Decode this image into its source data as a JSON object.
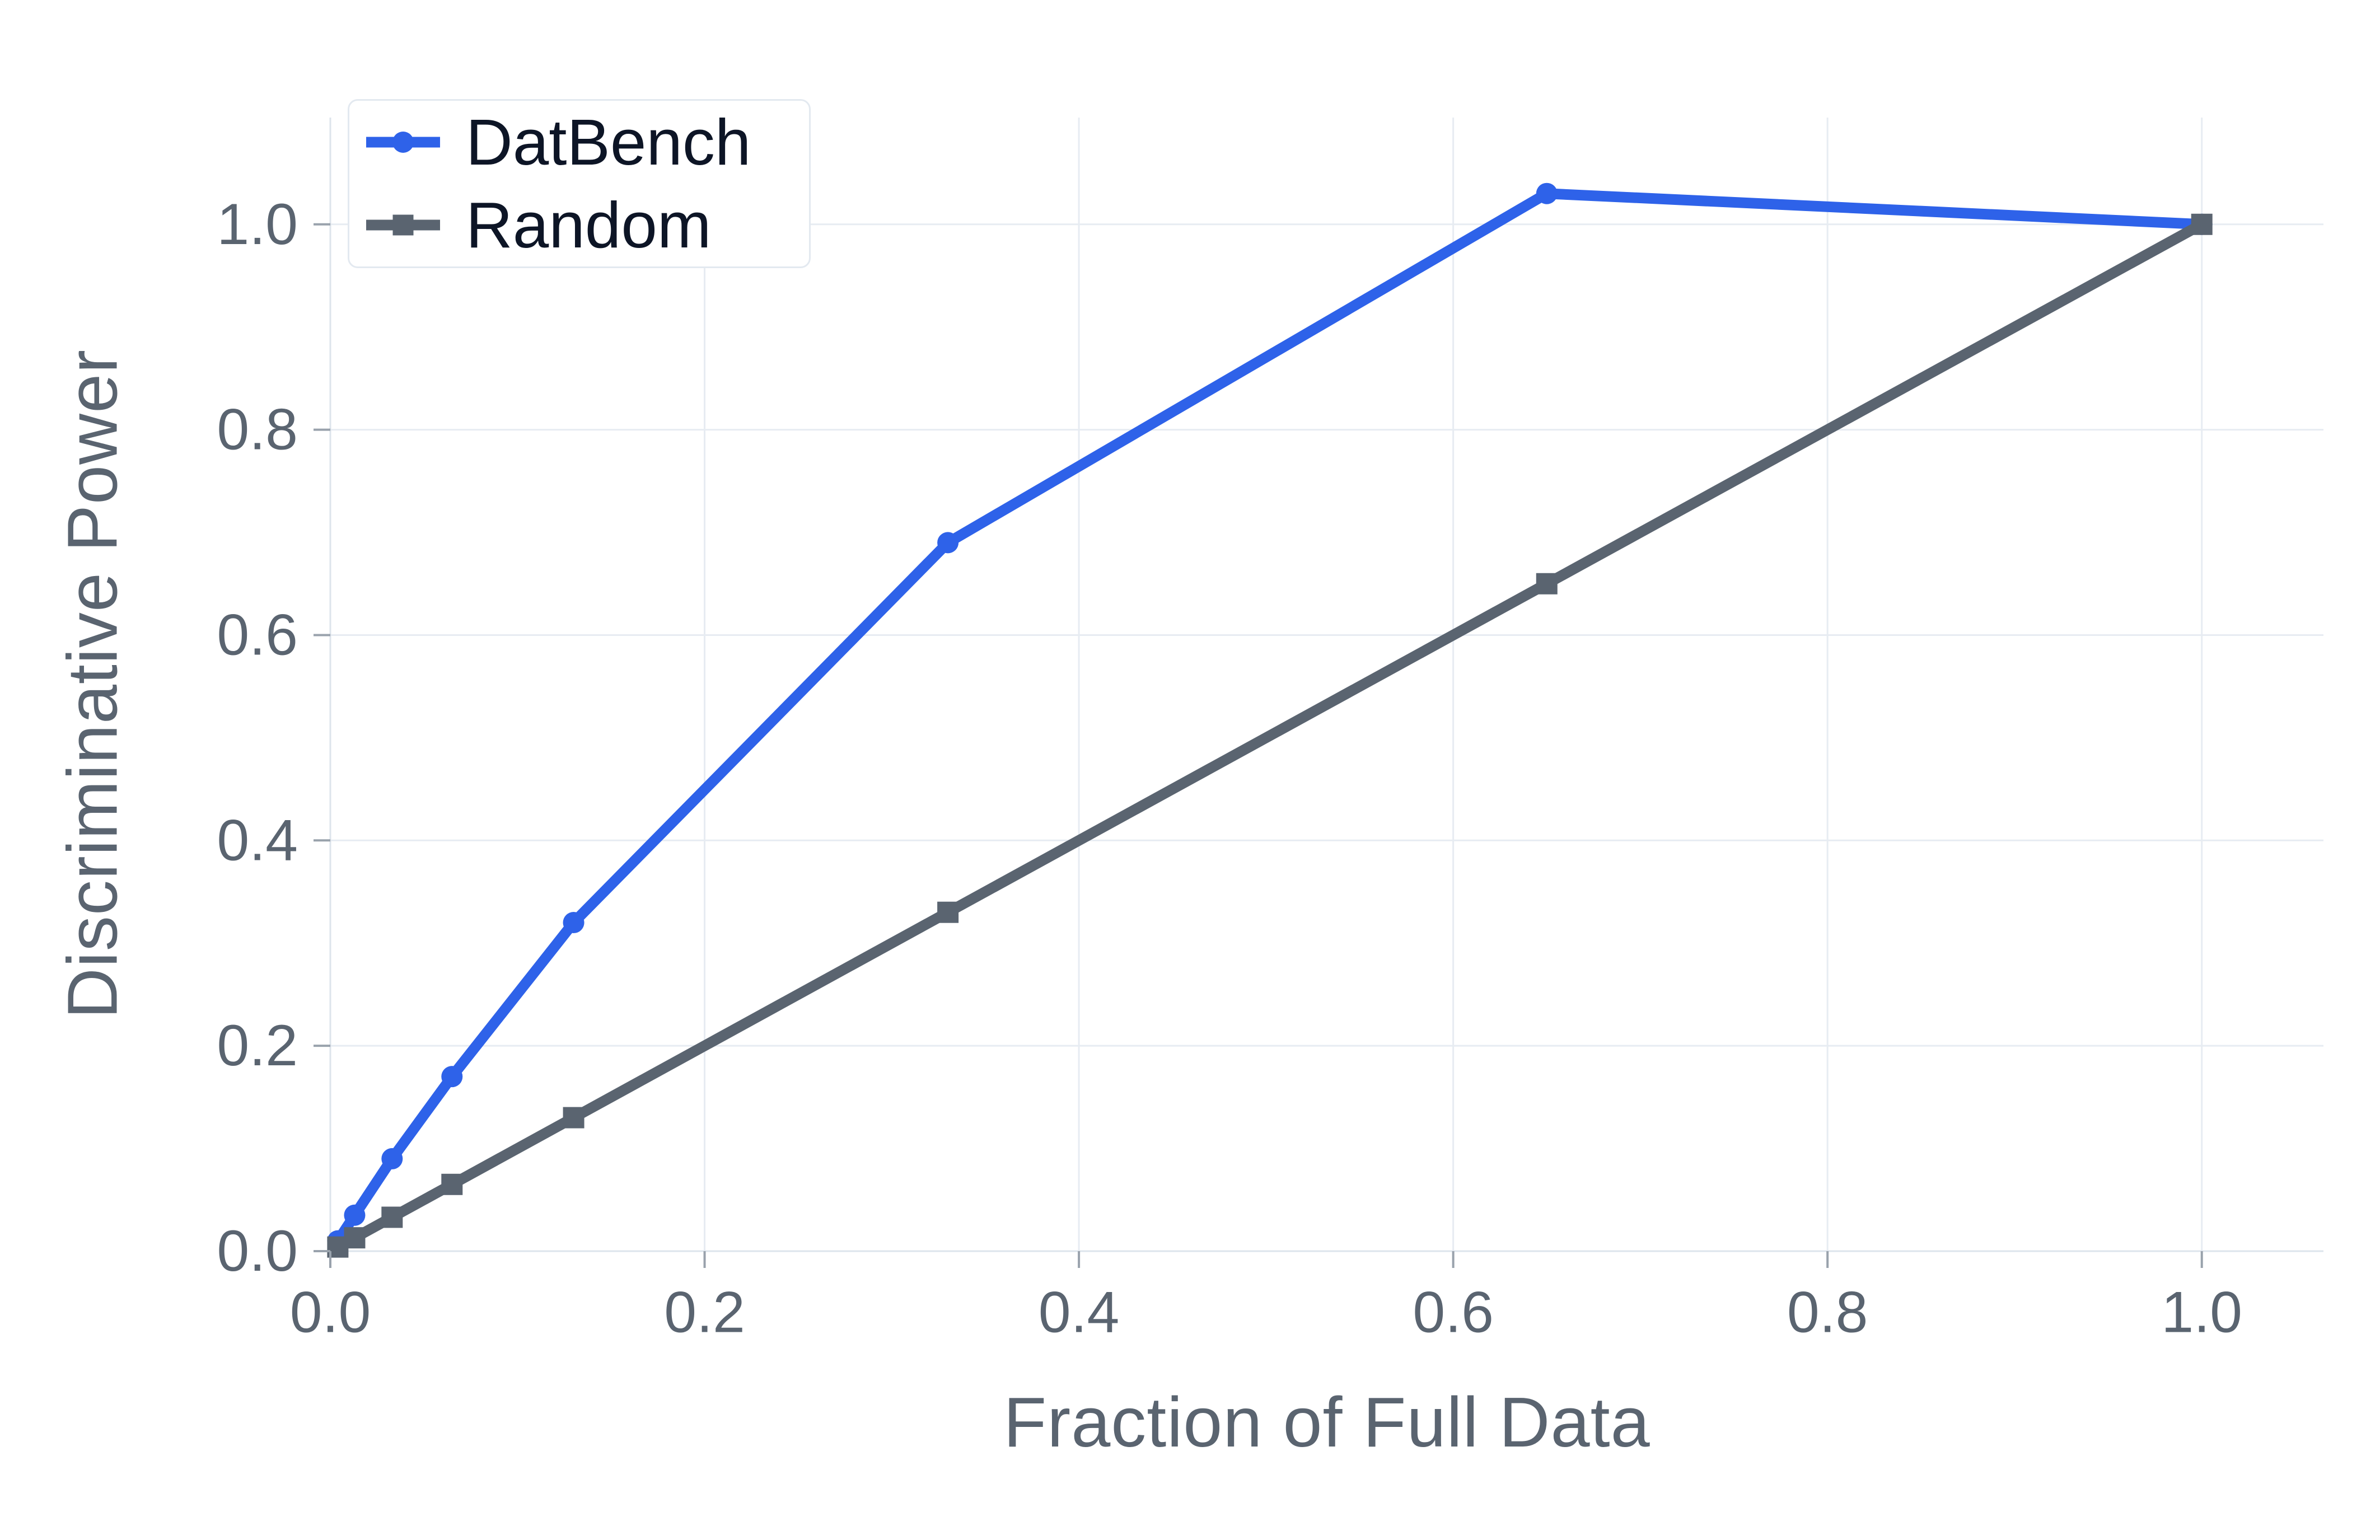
{
  "figure": {
    "background": "#ffffff",
    "grid_color": "#e7ecf2",
    "spine_color": "#dde4ec",
    "tick_color": "#99a2ac",
    "text_color": "#5a6470",
    "legend_text_color": "#0d1526"
  },
  "chart_data": {
    "type": "line",
    "title": "",
    "xlabel": "Fraction of Full Data",
    "ylabel": "Discriminative Power",
    "x_ticks": [
      "0.0",
      "0.2",
      "0.4",
      "0.6",
      "0.8",
      "1.0"
    ],
    "y_ticks": [
      "0.0",
      "0.2",
      "0.4",
      "0.6",
      "0.8",
      "1.0"
    ],
    "xlim": [
      0,
      1.065
    ],
    "ylim": [
      0,
      1.104
    ],
    "grid": true,
    "legend_position": "upper-left",
    "series": [
      {
        "name": "DatBench",
        "color": "#2e62e9",
        "marker": "circle",
        "x": [
          0.004,
          0.013,
          0.033,
          0.065,
          0.13,
          0.33,
          0.65,
          1.0
        ],
        "y": [
          0.01,
          0.035,
          0.09,
          0.17,
          0.32,
          0.69,
          1.03,
          1.0
        ]
      },
      {
        "name": "Random",
        "color": "#5a6470",
        "marker": "square",
        "x": [
          0.004,
          0.013,
          0.033,
          0.065,
          0.13,
          0.33,
          0.65,
          1.0
        ],
        "y": [
          0.004,
          0.013,
          0.033,
          0.065,
          0.13,
          0.33,
          0.65,
          1.0
        ]
      }
    ]
  }
}
